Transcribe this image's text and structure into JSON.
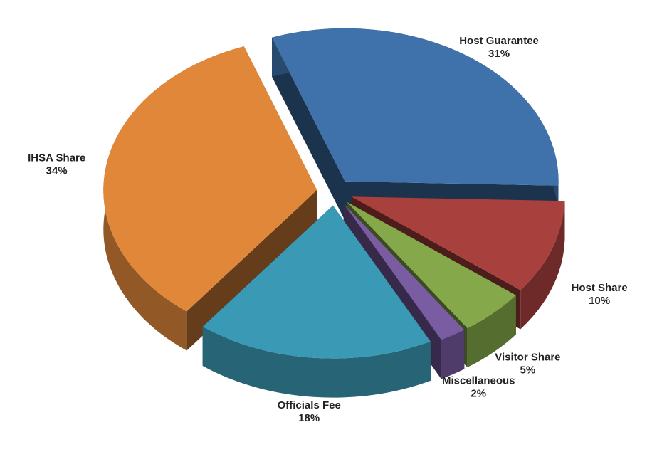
{
  "chart_data": {
    "type": "pie",
    "categories": [
      "Host Guarantee",
      "Host Share",
      "Visitor Share",
      "Miscellaneous",
      "Officials Fee",
      "IHSA Share"
    ],
    "values": [
      31,
      10,
      5,
      2,
      18,
      34
    ],
    "value_labels": [
      "31%",
      "10%",
      "5%",
      "2%",
      "18%",
      "34%"
    ],
    "colors": [
      "#3f72ab",
      "#a8403d",
      "#84a84a",
      "#7a5ca3",
      "#3a9ab5",
      "#e0873a"
    ]
  }
}
